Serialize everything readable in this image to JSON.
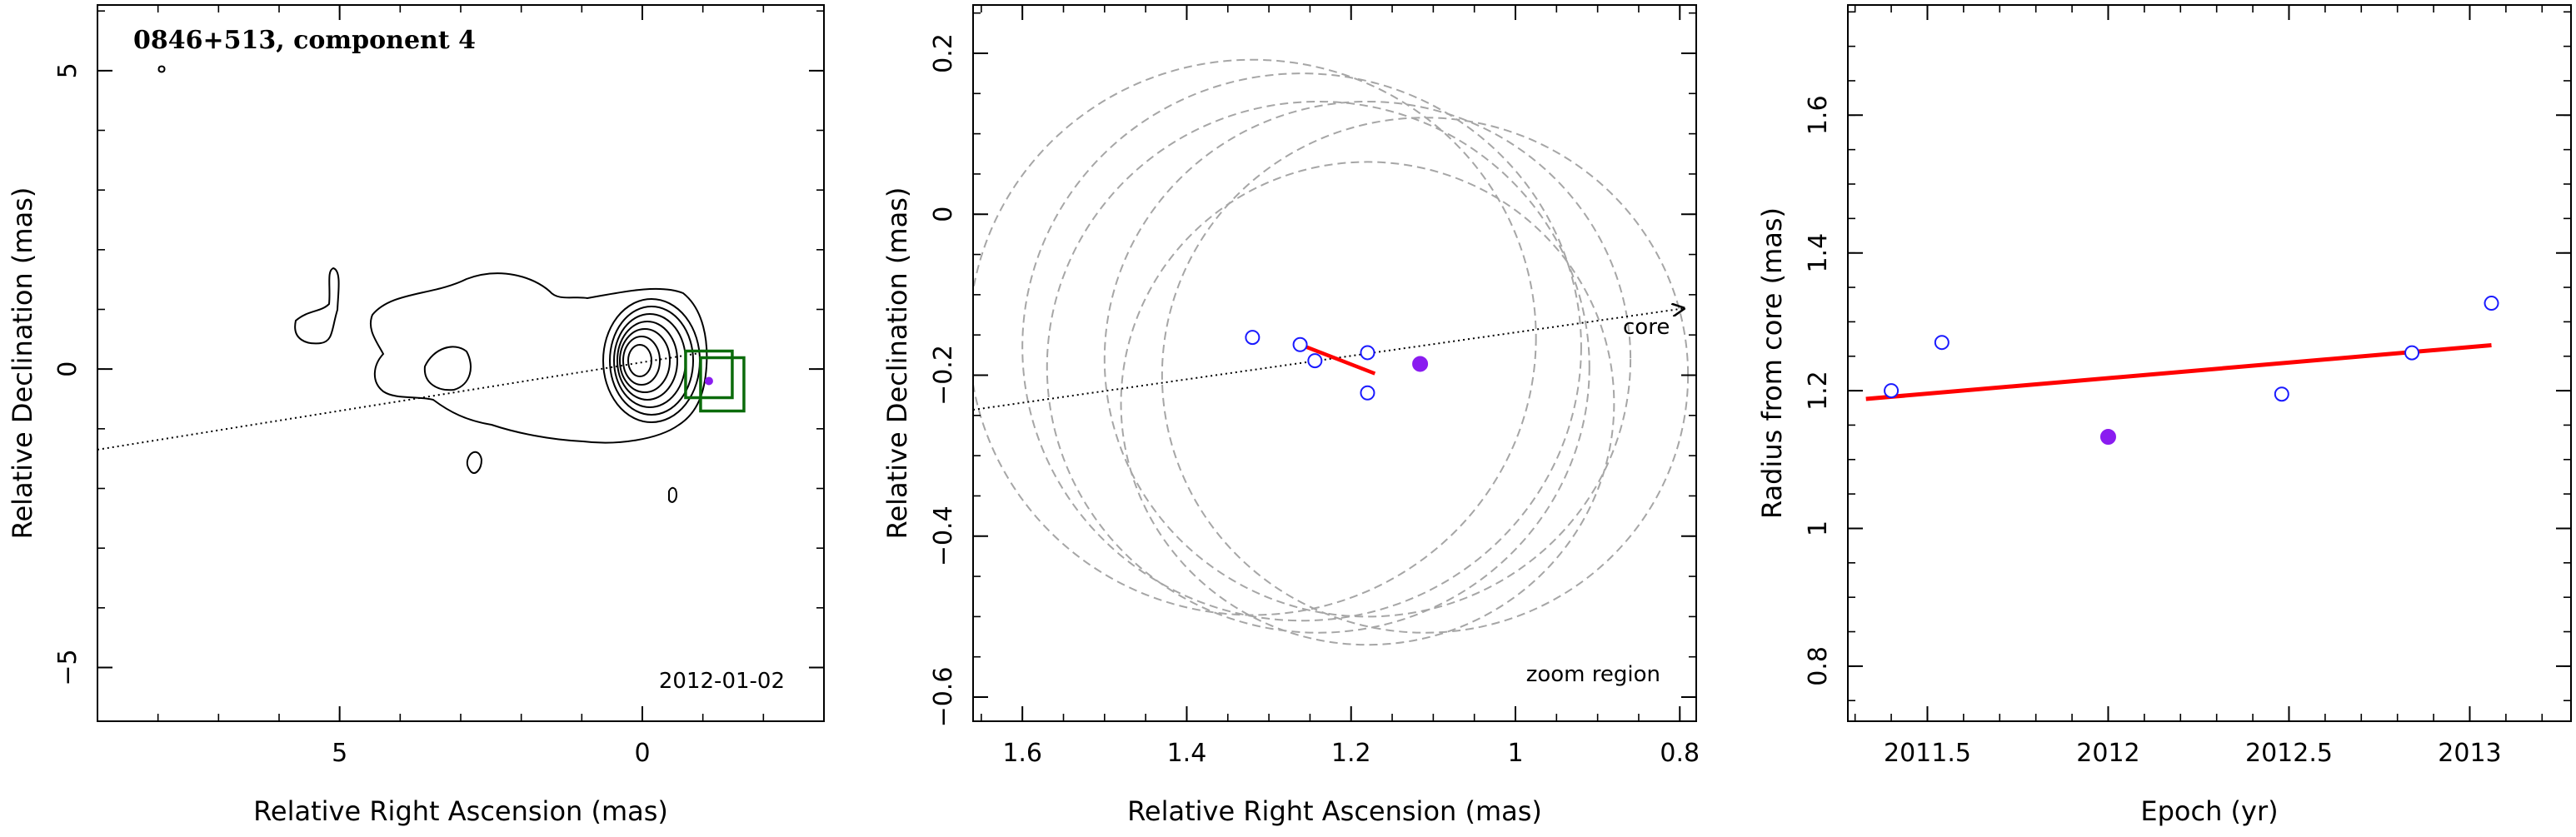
{
  "colors": {
    "open_marker": "#1a1aff",
    "filled_marker": "#8a1cf0",
    "fit_line": "#ff0000",
    "circle": "#a6a6a6",
    "box": "#0b6b0b",
    "axis": "#000000"
  },
  "chart_data": [
    {
      "type": "contour",
      "title": "0846+513, component 4",
      "date_label": "2012-01-02",
      "xlabel": "Relative Right Ascension (mas)",
      "ylabel": "Relative Declination (mas)",
      "xlim": [
        9,
        -3
      ],
      "ylim": [
        -5.9,
        6.1
      ],
      "x_inverted": true,
      "x_ticks": [
        5,
        0
      ],
      "y_ticks": [
        5,
        0,
        -5
      ],
      "jet_axis_line": {
        "x": [
          9,
          -0.9
        ],
        "y": [
          -1.35,
          0.26
        ]
      },
      "core": {
        "x": 0,
        "y": 0
      },
      "component": {
        "x": -1.1,
        "y": -0.2
      }
    },
    {
      "type": "scatter",
      "annotation_core": "core",
      "annotation_zoom": "zoom region",
      "xlabel": "Relative Right Ascension (mas)",
      "ylabel": "Relative Declination (mas)",
      "xlim": [
        1.66,
        0.78
      ],
      "ylim": [
        -0.63,
        0.26
      ],
      "x_inverted": true,
      "x_ticks": [
        1.6,
        1.4,
        1.2,
        1.0,
        0.8
      ],
      "x_tick_labels": [
        "1.6",
        "1.4",
        "1.2",
        "1",
        "0.8"
      ],
      "y_ticks": [
        0.2,
        0,
        -0.2,
        -0.4,
        -0.6
      ],
      "y_tick_labels": [
        "0.2",
        "0",
        "−0.2",
        "−0.4",
        "−0.6"
      ],
      "open_points": [
        {
          "x": 1.32,
          "y": -0.153
        },
        {
          "x": 1.262,
          "y": -0.162
        },
        {
          "x": 1.244,
          "y": -0.182
        },
        {
          "x": 1.18,
          "y": -0.172
        },
        {
          "x": 1.18,
          "y": -0.222
        }
      ],
      "filled_points": [
        {
          "x": 1.116,
          "y": -0.186
        }
      ],
      "fit_segment": {
        "x": [
          1.262,
          1.171
        ],
        "y": [
          -0.162,
          -0.198
        ]
      },
      "jet_axis_line": {
        "x": [
          1.66,
          0.795
        ],
        "y": [
          -0.243,
          -0.117
        ]
      },
      "circles": [
        {
          "cx": 1.32,
          "cy": -0.153,
          "r": 0.345
        },
        {
          "cx": 1.26,
          "cy": -0.165,
          "r": 0.34
        },
        {
          "cx": 1.24,
          "cy": -0.19,
          "r": 0.33
        },
        {
          "cx": 1.18,
          "cy": -0.18,
          "r": 0.32
        },
        {
          "cx": 1.18,
          "cy": -0.235,
          "r": 0.3
        },
        {
          "cx": 1.11,
          "cy": -0.2,
          "r": 0.32
        }
      ]
    },
    {
      "type": "scatter",
      "xlabel": "Epoch (yr)",
      "ylabel": "Radius from core (mas)",
      "xlim": [
        2011.28,
        2013.28
      ],
      "ylim": [
        0.72,
        1.76
      ],
      "x_ticks": [
        2011.5,
        2012,
        2012.5,
        2013
      ],
      "x_tick_labels": [
        "2011.5",
        "2012",
        "2012.5",
        "2013"
      ],
      "y_ticks": [
        0.8,
        1.0,
        1.2,
        1.4,
        1.6
      ],
      "y_tick_labels": [
        "0.8",
        "1",
        "1.2",
        "1.4",
        "1.6"
      ],
      "open_points": [
        {
          "x": 2011.4,
          "y": 1.2
        },
        {
          "x": 2011.54,
          "y": 1.27
        },
        {
          "x": 2012.48,
          "y": 1.195
        },
        {
          "x": 2012.84,
          "y": 1.255
        },
        {
          "x": 2013.06,
          "y": 1.327
        }
      ],
      "filled_points": [
        {
          "x": 2012.0,
          "y": 1.133
        }
      ],
      "fit_line": {
        "x": [
          2011.33,
          2013.06
        ],
        "y": [
          1.188,
          1.266
        ]
      }
    }
  ]
}
